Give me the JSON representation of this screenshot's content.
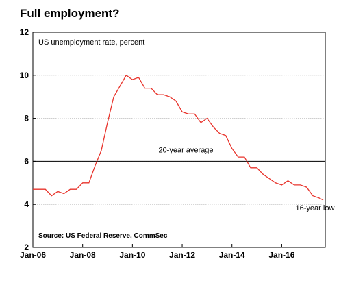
{
  "chart_data": {
    "type": "line",
    "title": "Full employment?",
    "subtitle": "US unemployment rate, percent",
    "xlabel": "",
    "ylabel": "",
    "xlim": [
      "2006-01",
      "2017-10"
    ],
    "ylim": [
      2,
      12
    ],
    "yticks": [
      2,
      4,
      6,
      8,
      10,
      12
    ],
    "xticks": [
      {
        "label": "Jan-06",
        "x": "2006-01"
      },
      {
        "label": "Jan-08",
        "x": "2008-01"
      },
      {
        "label": "Jan-10",
        "x": "2010-01"
      },
      {
        "label": "Jan-12",
        "x": "2012-01"
      },
      {
        "label": "Jan-14",
        "x": "2014-01"
      },
      {
        "label": "Jan-16",
        "x": "2016-01"
      }
    ],
    "grid": true,
    "reference_line": {
      "y": 6.0,
      "label": "20-year average"
    },
    "annotations": [
      {
        "text": "16-year low",
        "x": "2017-09",
        "y": 4.2
      }
    ],
    "source": "Source: US Federal Reserve, CommSec",
    "line_color": "#e8332b",
    "series": [
      {
        "values": [
          {
            "x": "2006-01",
            "y": 4.7
          },
          {
            "x": "2006-04",
            "y": 4.7
          },
          {
            "x": "2006-07",
            "y": 4.7
          },
          {
            "x": "2006-10",
            "y": 4.4
          },
          {
            "x": "2007-01",
            "y": 4.6
          },
          {
            "x": "2007-04",
            "y": 4.5
          },
          {
            "x": "2007-07",
            "y": 4.7
          },
          {
            "x": "2007-10",
            "y": 4.7
          },
          {
            "x": "2008-01",
            "y": 5.0
          },
          {
            "x": "2008-04",
            "y": 5.0
          },
          {
            "x": "2008-07",
            "y": 5.8
          },
          {
            "x": "2008-10",
            "y": 6.5
          },
          {
            "x": "2009-01",
            "y": 7.8
          },
          {
            "x": "2009-04",
            "y": 9.0
          },
          {
            "x": "2009-07",
            "y": 9.5
          },
          {
            "x": "2009-10",
            "y": 10.0
          },
          {
            "x": "2010-01",
            "y": 9.8
          },
          {
            "x": "2010-04",
            "y": 9.9
          },
          {
            "x": "2010-07",
            "y": 9.4
          },
          {
            "x": "2010-10",
            "y": 9.4
          },
          {
            "x": "2011-01",
            "y": 9.1
          },
          {
            "x": "2011-04",
            "y": 9.1
          },
          {
            "x": "2011-07",
            "y": 9.0
          },
          {
            "x": "2011-10",
            "y": 8.8
          },
          {
            "x": "2012-01",
            "y": 8.3
          },
          {
            "x": "2012-04",
            "y": 8.2
          },
          {
            "x": "2012-07",
            "y": 8.2
          },
          {
            "x": "2012-10",
            "y": 7.8
          },
          {
            "x": "2013-01",
            "y": 8.0
          },
          {
            "x": "2013-04",
            "y": 7.6
          },
          {
            "x": "2013-07",
            "y": 7.3
          },
          {
            "x": "2013-10",
            "y": 7.2
          },
          {
            "x": "2014-01",
            "y": 6.6
          },
          {
            "x": "2014-04",
            "y": 6.2
          },
          {
            "x": "2014-07",
            "y": 6.2
          },
          {
            "x": "2014-10",
            "y": 5.7
          },
          {
            "x": "2015-01",
            "y": 5.7
          },
          {
            "x": "2015-04",
            "y": 5.4
          },
          {
            "x": "2015-07",
            "y": 5.2
          },
          {
            "x": "2015-10",
            "y": 5.0
          },
          {
            "x": "2016-01",
            "y": 4.9
          },
          {
            "x": "2016-04",
            "y": 5.1
          },
          {
            "x": "2016-07",
            "y": 4.9
          },
          {
            "x": "2016-10",
            "y": 4.9
          },
          {
            "x": "2017-01",
            "y": 4.8
          },
          {
            "x": "2017-04",
            "y": 4.4
          },
          {
            "x": "2017-07",
            "y": 4.3
          },
          {
            "x": "2017-09",
            "y": 4.2
          }
        ]
      }
    ]
  }
}
